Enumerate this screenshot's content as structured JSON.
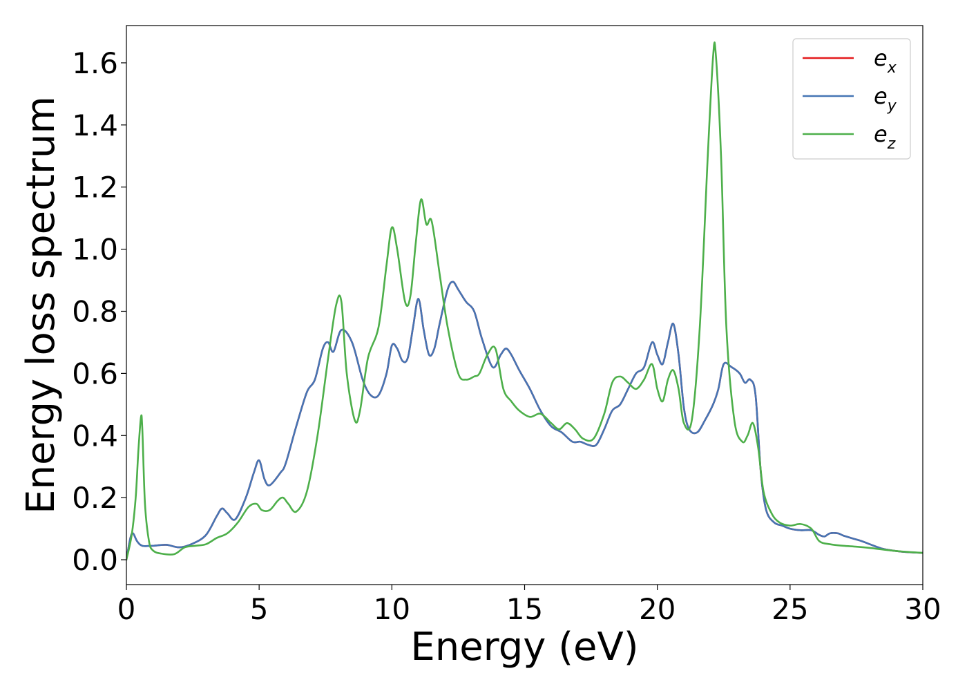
{
  "chart_data": {
    "type": "line",
    "xlabel": "Energy (eV)",
    "ylabel": "Energy loss spectrum",
    "xlim": [
      0,
      30
    ],
    "ylim": [
      -0.08,
      1.72
    ],
    "x_ticks": [
      "0",
      "5",
      "10",
      "15",
      "20",
      "25",
      "30"
    ],
    "y_ticks": [
      "0.0",
      "0.2",
      "0.4",
      "0.6",
      "0.8",
      "1.0",
      "1.2",
      "1.4",
      "1.6"
    ],
    "x_tick_values": [
      0,
      5,
      10,
      15,
      20,
      25,
      30
    ],
    "y_tick_values": [
      0.0,
      0.2,
      0.4,
      0.6,
      0.8,
      1.0,
      1.2,
      1.4,
      1.6
    ],
    "grid": false,
    "legend_position": "top-right",
    "series": [
      {
        "name_base": "e",
        "name_sub": "x",
        "color": "#e41a1c",
        "x": [
          0,
          0.15,
          0.25,
          0.4,
          0.6,
          1.0,
          1.5,
          2.0,
          2.5,
          3.0,
          3.4,
          3.6,
          3.8,
          4.1,
          4.5,
          4.8,
          5.0,
          5.2,
          5.4,
          5.8,
          6.0,
          6.4,
          6.8,
          7.1,
          7.4,
          7.6,
          7.8,
          8.1,
          8.5,
          8.9,
          9.2,
          9.5,
          9.8,
          10.0,
          10.2,
          10.4,
          10.6,
          10.8,
          11.0,
          11.2,
          11.4,
          11.6,
          11.8,
          12.1,
          12.3,
          12.5,
          12.8,
          13.1,
          13.4,
          13.8,
          14.1,
          14.3,
          14.5,
          14.8,
          15.2,
          15.6,
          16.0,
          16.4,
          16.8,
          17.1,
          17.4,
          17.7,
          18.0,
          18.3,
          18.6,
          18.9,
          19.2,
          19.5,
          19.8,
          20.0,
          20.2,
          20.4,
          20.6,
          20.8,
          21.0,
          21.2,
          21.5,
          21.8,
          22.1,
          22.3,
          22.5,
          22.8,
          23.1,
          23.3,
          23.5,
          23.7,
          23.9,
          24.1,
          24.4,
          24.7,
          25.0,
          25.4,
          25.8,
          26.1,
          26.3,
          26.5,
          26.8,
          27.0,
          27.3,
          27.7,
          28.0,
          28.5,
          29.0,
          29.5,
          30.0
        ],
        "y": [
          0.0,
          0.07,
          0.085,
          0.06,
          0.045,
          0.045,
          0.048,
          0.04,
          0.052,
          0.08,
          0.14,
          0.165,
          0.15,
          0.13,
          0.2,
          0.28,
          0.32,
          0.26,
          0.24,
          0.28,
          0.31,
          0.43,
          0.54,
          0.58,
          0.68,
          0.7,
          0.67,
          0.74,
          0.7,
          0.58,
          0.53,
          0.53,
          0.6,
          0.69,
          0.68,
          0.64,
          0.65,
          0.75,
          0.84,
          0.74,
          0.66,
          0.68,
          0.76,
          0.87,
          0.895,
          0.87,
          0.83,
          0.8,
          0.71,
          0.62,
          0.66,
          0.68,
          0.66,
          0.61,
          0.55,
          0.48,
          0.43,
          0.41,
          0.38,
          0.38,
          0.37,
          0.37,
          0.42,
          0.48,
          0.5,
          0.55,
          0.6,
          0.62,
          0.7,
          0.66,
          0.63,
          0.7,
          0.76,
          0.66,
          0.49,
          0.42,
          0.41,
          0.45,
          0.5,
          0.55,
          0.63,
          0.62,
          0.6,
          0.57,
          0.58,
          0.53,
          0.28,
          0.16,
          0.12,
          0.11,
          0.1,
          0.095,
          0.095,
          0.08,
          0.075,
          0.085,
          0.085,
          0.078,
          0.07,
          0.06,
          0.05,
          0.035,
          0.028,
          0.024,
          0.022
        ]
      },
      {
        "name_base": "e",
        "name_sub": "y",
        "color": "#4575b4",
        "x": [
          0,
          0.15,
          0.25,
          0.4,
          0.6,
          1.0,
          1.5,
          2.0,
          2.5,
          3.0,
          3.4,
          3.6,
          3.8,
          4.1,
          4.5,
          4.8,
          5.0,
          5.2,
          5.4,
          5.8,
          6.0,
          6.4,
          6.8,
          7.1,
          7.4,
          7.6,
          7.8,
          8.1,
          8.5,
          8.9,
          9.2,
          9.5,
          9.8,
          10.0,
          10.2,
          10.4,
          10.6,
          10.8,
          11.0,
          11.2,
          11.4,
          11.6,
          11.8,
          12.1,
          12.3,
          12.5,
          12.8,
          13.1,
          13.4,
          13.8,
          14.1,
          14.3,
          14.5,
          14.8,
          15.2,
          15.6,
          16.0,
          16.4,
          16.8,
          17.1,
          17.4,
          17.7,
          18.0,
          18.3,
          18.6,
          18.9,
          19.2,
          19.5,
          19.8,
          20.0,
          20.2,
          20.4,
          20.6,
          20.8,
          21.0,
          21.2,
          21.5,
          21.8,
          22.1,
          22.3,
          22.5,
          22.8,
          23.1,
          23.3,
          23.5,
          23.7,
          23.9,
          24.1,
          24.4,
          24.7,
          25.0,
          25.4,
          25.8,
          26.1,
          26.3,
          26.5,
          26.8,
          27.0,
          27.3,
          27.7,
          28.0,
          28.5,
          29.0,
          29.5,
          30.0
        ],
        "y": [
          0.0,
          0.07,
          0.085,
          0.06,
          0.045,
          0.045,
          0.048,
          0.04,
          0.052,
          0.08,
          0.14,
          0.165,
          0.15,
          0.13,
          0.2,
          0.28,
          0.32,
          0.26,
          0.24,
          0.28,
          0.31,
          0.43,
          0.54,
          0.58,
          0.68,
          0.7,
          0.67,
          0.74,
          0.7,
          0.58,
          0.53,
          0.53,
          0.6,
          0.69,
          0.68,
          0.64,
          0.65,
          0.75,
          0.84,
          0.74,
          0.66,
          0.68,
          0.76,
          0.87,
          0.895,
          0.87,
          0.83,
          0.8,
          0.71,
          0.62,
          0.66,
          0.68,
          0.66,
          0.61,
          0.55,
          0.48,
          0.43,
          0.41,
          0.38,
          0.38,
          0.37,
          0.37,
          0.42,
          0.48,
          0.5,
          0.55,
          0.6,
          0.62,
          0.7,
          0.66,
          0.63,
          0.7,
          0.76,
          0.66,
          0.49,
          0.42,
          0.41,
          0.45,
          0.5,
          0.55,
          0.63,
          0.62,
          0.6,
          0.57,
          0.58,
          0.53,
          0.28,
          0.16,
          0.12,
          0.11,
          0.1,
          0.095,
          0.095,
          0.08,
          0.075,
          0.085,
          0.085,
          0.078,
          0.07,
          0.06,
          0.05,
          0.035,
          0.028,
          0.024,
          0.022
        ]
      },
      {
        "name_base": "e",
        "name_sub": "z",
        "color": "#4daf4a",
        "x": [
          0,
          0.2,
          0.35,
          0.45,
          0.55,
          0.6,
          0.7,
          0.85,
          1.0,
          1.3,
          1.8,
          2.2,
          2.6,
          3.0,
          3.4,
          3.8,
          4.2,
          4.6,
          4.9,
          5.1,
          5.4,
          5.7,
          5.9,
          6.1,
          6.4,
          6.8,
          7.2,
          7.6,
          7.9,
          8.1,
          8.3,
          8.6,
          8.8,
          9.1,
          9.5,
          9.8,
          10.0,
          10.2,
          10.5,
          10.7,
          10.9,
          11.1,
          11.3,
          11.5,
          11.8,
          12.1,
          12.5,
          12.8,
          13.1,
          13.3,
          13.6,
          13.9,
          14.2,
          14.5,
          14.8,
          15.2,
          15.6,
          16.0,
          16.3,
          16.6,
          16.9,
          17.2,
          17.6,
          18.0,
          18.3,
          18.6,
          18.9,
          19.2,
          19.5,
          19.8,
          20.0,
          20.2,
          20.4,
          20.6,
          20.8,
          21.0,
          21.3,
          21.6,
          21.9,
          22.1,
          22.2,
          22.4,
          22.6,
          22.9,
          23.2,
          23.4,
          23.6,
          23.8,
          24.0,
          24.3,
          24.6,
          25.0,
          25.4,
          25.8,
          26.1,
          26.5,
          27.0,
          27.5,
          28.0,
          29.0,
          30.0
        ],
        "y": [
          0.0,
          0.08,
          0.2,
          0.35,
          0.46,
          0.42,
          0.18,
          0.06,
          0.03,
          0.02,
          0.018,
          0.04,
          0.045,
          0.05,
          0.07,
          0.085,
          0.12,
          0.17,
          0.18,
          0.16,
          0.16,
          0.19,
          0.2,
          0.18,
          0.155,
          0.22,
          0.4,
          0.65,
          0.82,
          0.83,
          0.6,
          0.45,
          0.48,
          0.65,
          0.75,
          0.95,
          1.07,
          1.0,
          0.83,
          0.85,
          1.02,
          1.16,
          1.08,
          1.09,
          0.92,
          0.75,
          0.6,
          0.58,
          0.59,
          0.6,
          0.66,
          0.68,
          0.55,
          0.51,
          0.48,
          0.46,
          0.47,
          0.44,
          0.42,
          0.44,
          0.42,
          0.39,
          0.39,
          0.47,
          0.57,
          0.59,
          0.57,
          0.55,
          0.58,
          0.63,
          0.55,
          0.51,
          0.58,
          0.61,
          0.55,
          0.44,
          0.45,
          0.75,
          1.3,
          1.62,
          1.63,
          1.3,
          0.75,
          0.45,
          0.38,
          0.4,
          0.44,
          0.36,
          0.22,
          0.15,
          0.12,
          0.11,
          0.115,
          0.1,
          0.06,
          0.05,
          0.045,
          0.042,
          0.038,
          0.028,
          0.022
        ]
      }
    ]
  }
}
